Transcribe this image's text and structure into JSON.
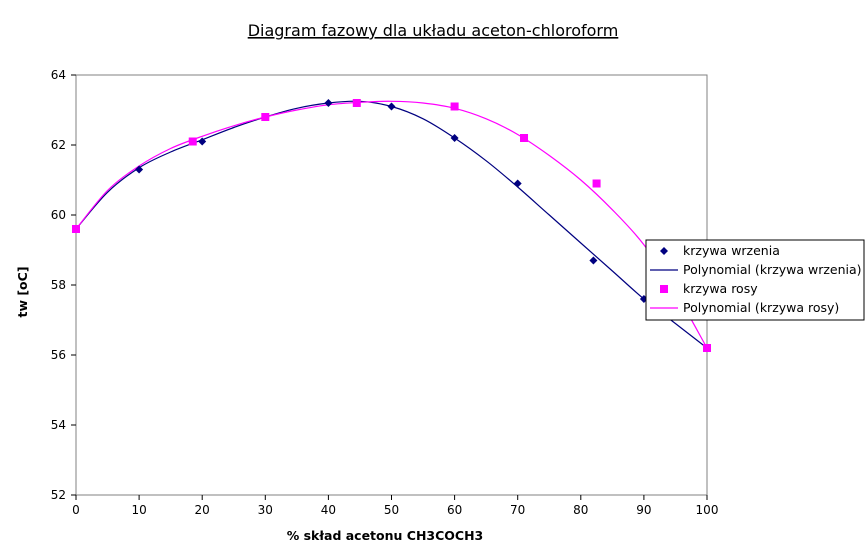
{
  "chart_data": {
    "type": "scatter",
    "title": "Diagram fazowy dla układu aceton-chloroform",
    "xlabel": "% skład acetonu CH3COCH3",
    "ylabel": "tw [oC]",
    "xlim": [
      0,
      100
    ],
    "ylim": [
      52,
      64
    ],
    "x_ticks": [
      "0",
      "10",
      "20",
      "30",
      "40",
      "50",
      "60",
      "70",
      "80",
      "90",
      "100"
    ],
    "y_ticks": [
      "52",
      "54",
      "56",
      "58",
      "60",
      "62",
      "64"
    ],
    "grid": false,
    "legend_position": "right",
    "series": [
      {
        "name": "krzywa wrzenia",
        "kind": "points",
        "marker": "diamond",
        "color": "#000080",
        "x": [
          0,
          10,
          20,
          30,
          40,
          50,
          60,
          70,
          82,
          90,
          100
        ],
        "y": [
          59.6,
          61.3,
          62.1,
          62.8,
          63.2,
          63.1,
          62.2,
          60.9,
          58.7,
          57.6,
          56.2
        ]
      },
      {
        "name": "Polynomial (krzywa wrzenia)",
        "kind": "trendline",
        "color": "#000080",
        "x": [
          0,
          5,
          10,
          15,
          20,
          25,
          30,
          35,
          40,
          45,
          50,
          55,
          60,
          65,
          70,
          75,
          80,
          85,
          90,
          95,
          100
        ],
        "y": [
          59.6,
          60.65,
          61.35,
          61.8,
          62.15,
          62.5,
          62.8,
          63.05,
          63.2,
          63.25,
          63.1,
          62.75,
          62.2,
          61.55,
          60.8,
          60.0,
          59.2,
          58.4,
          57.6,
          56.9,
          56.2
        ]
      },
      {
        "name": "krzywa rosy",
        "kind": "points",
        "marker": "square",
        "color": "#ff00ff",
        "x": [
          0,
          18.5,
          30,
          44.5,
          60,
          71,
          82.5,
          92,
          100
        ],
        "y": [
          59.6,
          62.1,
          62.8,
          63.2,
          63.1,
          62.2,
          60.9,
          58.7,
          56.2
        ]
      },
      {
        "name": "Polynomial (krzywa rosy)",
        "kind": "trendline",
        "color": "#ff00ff",
        "x": [
          0,
          5,
          10,
          15,
          20,
          25,
          30,
          35,
          40,
          45,
          50,
          55,
          60,
          65,
          70,
          75,
          80,
          85,
          90,
          95,
          100
        ],
        "y": [
          59.6,
          60.7,
          61.4,
          61.9,
          62.25,
          62.55,
          62.8,
          63.0,
          63.15,
          63.22,
          63.25,
          63.2,
          63.05,
          62.75,
          62.3,
          61.7,
          61.0,
          60.15,
          59.15,
          57.8,
          56.2
        ]
      }
    ]
  }
}
